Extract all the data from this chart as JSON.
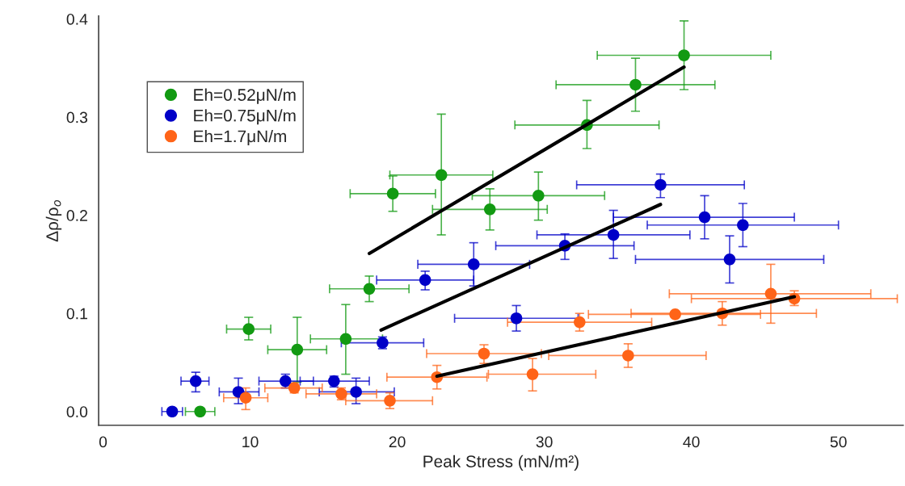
{
  "chart_data": {
    "type": "scatter",
    "xlabel": "Peak Stress (mN/m²)",
    "ylabel": "Δρ/ρ$_{o}$",
    "xlim": [
      -0.3,
      54.4
    ],
    "ylim": [
      -0.014,
      0.403
    ],
    "xticks": [
      0,
      10,
      20,
      30,
      40,
      50
    ],
    "yticks": [
      {
        "value": 0,
        "label": "0.0"
      },
      {
        "value": 0.1,
        "label": "0.1"
      },
      {
        "value": 0.2,
        "label": "0.2"
      },
      {
        "value": 0.3,
        "label": "0.3"
      },
      {
        "value": 0.4,
        "label": "0.4"
      }
    ],
    "grid": false,
    "legend": "top left",
    "marker": "circle",
    "series": [
      {
        "name": "Eh=0.52μN/m",
        "color": "#129a12",
        "x": [
          6.6,
          9.9,
          13.2,
          16.5,
          18.1,
          19.7,
          23.0,
          26.3,
          29.6,
          32.9,
          36.2,
          39.5
        ],
        "values": [
          0.0,
          0.084,
          0.063,
          0.074,
          0.125,
          0.222,
          0.241,
          0.206,
          0.22,
          0.292,
          0.333,
          0.363
        ],
        "errors": [
          null,
          [
            0.073,
            0.096
          ],
          [
            0.03,
            0.096
          ],
          [
            0.038,
            0.109
          ],
          [
            0.112,
            0.138
          ],
          [
            0.204,
            0.24
          ],
          [
            0.18,
            0.303
          ],
          [
            0.185,
            0.227
          ],
          [
            0.195,
            0.244
          ],
          [
            0.268,
            0.317
          ],
          [
            0.306,
            0.36
          ],
          [
            0.328,
            0.398
          ]
        ],
        "xerrors": [
          [
            5.6,
            7.6
          ],
          [
            8.4,
            11.4
          ],
          [
            11.2,
            15.2
          ],
          [
            14.1,
            19.0
          ],
          [
            15.4,
            20.8
          ],
          [
            16.8,
            22.6
          ],
          [
            19.5,
            26.5
          ],
          [
            22.4,
            30.2
          ],
          [
            25.1,
            34.1
          ],
          [
            28.0,
            37.8
          ],
          [
            30.8,
            41.6
          ],
          [
            33.6,
            45.4
          ]
        ]
      },
      {
        "name": "Eh=0.75μN/m",
        "color": "#0000c8",
        "x": [
          4.7,
          6.3,
          9.2,
          12.4,
          15.7,
          17.2,
          19.0,
          21.9,
          25.2,
          28.1,
          31.4,
          34.7,
          37.9,
          40.9,
          42.6,
          43.5
        ],
        "values": [
          0.0,
          0.031,
          0.02,
          0.031,
          0.031,
          0.02,
          0.07,
          0.134,
          0.15,
          0.095,
          0.169,
          0.18,
          0.231,
          0.198,
          0.155,
          0.19
        ],
        "errors": [
          null,
          [
            0.02,
            0.04
          ],
          [
            0.008,
            0.034
          ],
          [
            0.024,
            0.038
          ],
          [
            0.025,
            0.036
          ],
          [
            0.008,
            0.034
          ],
          [
            0.064,
            0.076
          ],
          [
            0.124,
            0.143
          ],
          [
            0.128,
            0.172
          ],
          [
            0.082,
            0.108
          ],
          [
            0.155,
            0.181
          ],
          [
            0.156,
            0.205
          ],
          [
            0.218,
            0.242
          ],
          [
            0.176,
            0.22
          ],
          [
            0.131,
            0.179
          ],
          [
            0.168,
            0.212
          ]
        ],
        "xerrors": [
          [
            4.0,
            5.4
          ],
          [
            5.3,
            7.2
          ],
          [
            7.9,
            10.6
          ],
          [
            10.6,
            14.3
          ],
          [
            13.4,
            18.1
          ],
          [
            14.7,
            19.8
          ],
          [
            16.2,
            21.8
          ],
          [
            18.6,
            25.2
          ],
          [
            21.4,
            29.0
          ],
          [
            23.9,
            32.3
          ],
          [
            26.7,
            36.1
          ],
          [
            29.5,
            39.9
          ],
          [
            32.2,
            43.6
          ],
          [
            34.7,
            47.0
          ],
          [
            36.2,
            49.0
          ],
          [
            37.0,
            50.0
          ]
        ]
      },
      {
        "name": "Eh=1.7μN/m",
        "color": "#ff6418",
        "x": [
          9.7,
          13.0,
          16.2,
          19.5,
          22.7,
          25.9,
          29.2,
          32.4,
          35.7,
          38.9,
          42.1,
          45.4,
          47.0
        ],
        "values": [
          0.014,
          0.024,
          0.018,
          0.011,
          0.035,
          0.059,
          0.038,
          0.091,
          0.057,
          0.099,
          0.1,
          0.12,
          0.115
        ],
        "errors": [
          [
            0.002,
            0.024
          ],
          [
            0.019,
            0.029
          ],
          [
            0.012,
            0.024
          ],
          [
            0.003,
            0.019
          ],
          [
            0.023,
            0.047
          ],
          [
            0.049,
            0.068
          ],
          [
            0.021,
            0.054
          ],
          [
            0.082,
            0.1
          ],
          [
            0.045,
            0.069
          ],
          null,
          [
            0.088,
            0.112
          ],
          [
            0.09,
            0.15
          ],
          [
            0.108,
            0.123
          ]
        ],
        "xerrors": [
          [
            8.2,
            11.2
          ],
          [
            11.0,
            14.9
          ],
          [
            13.8,
            18.6
          ],
          [
            16.5,
            22.4
          ],
          [
            19.3,
            26.1
          ],
          [
            22.0,
            29.8
          ],
          [
            26.2,
            33.5
          ],
          [
            27.5,
            37.3
          ],
          [
            30.3,
            41.0
          ],
          [
            33.0,
            44.7
          ],
          [
            35.9,
            48.5
          ],
          [
            38.5,
            52.2
          ],
          [
            40.0,
            54.0
          ]
        ]
      },
      {
        "type": "line",
        "color": "#000000",
        "marker": "none",
        "x": [
          18.1,
          39.5
        ],
        "values": [
          0.161,
          0.351
        ]
      },
      {
        "type": "line",
        "color": "#000000",
        "marker": "none",
        "x": [
          18.9,
          37.9
        ],
        "values": [
          0.083,
          0.211
        ]
      },
      {
        "type": "line",
        "color": "#000000",
        "marker": "none",
        "x": [
          22.7,
          47.0
        ],
        "values": [
          0.036,
          0.117
        ]
      }
    ]
  }
}
